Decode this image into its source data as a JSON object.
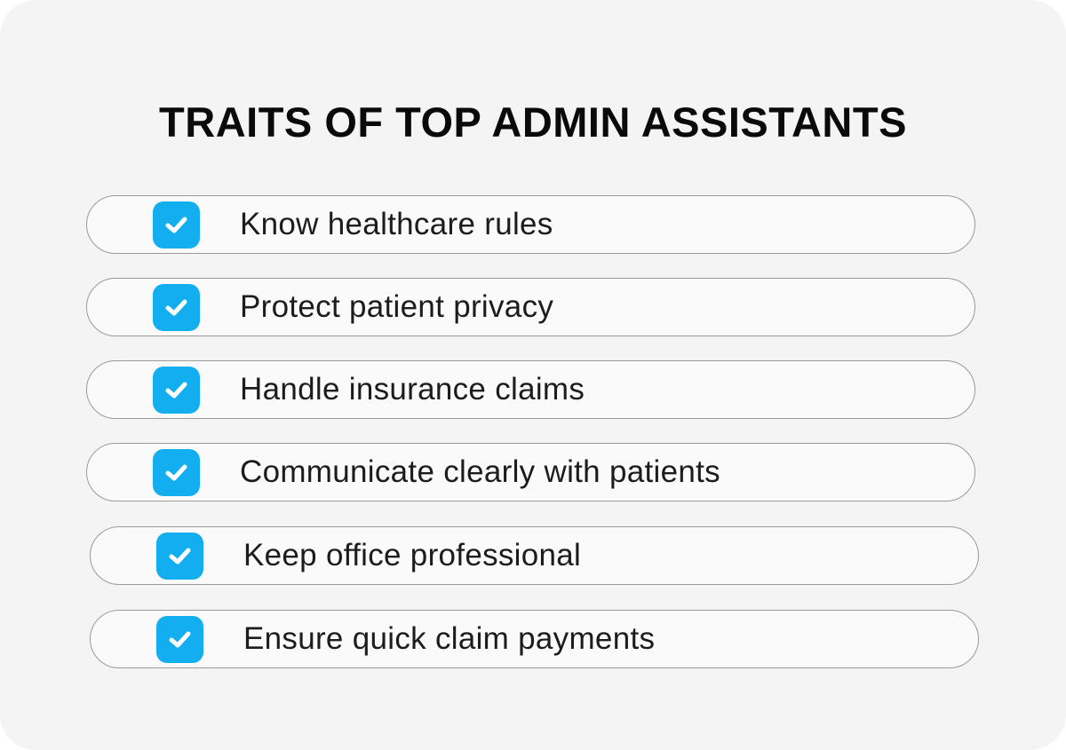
{
  "title": "TRAITS OF TOP ADMIN ASSISTANTS",
  "accent_color": "#12aef0",
  "items": [
    {
      "label": "Know healthcare rules",
      "icon": "checkbox-checked-icon"
    },
    {
      "label": "Protect patient privacy",
      "icon": "checkbox-checked-icon"
    },
    {
      "label": "Handle insurance claims",
      "icon": "checkbox-checked-icon"
    },
    {
      "label": "Communicate clearly with patients",
      "icon": "checkbox-checked-icon"
    },
    {
      "label": "Keep office professional",
      "icon": "checkbox-checked-icon"
    },
    {
      "label": "Ensure quick claim payments",
      "icon": "checkbox-checked-icon"
    }
  ]
}
